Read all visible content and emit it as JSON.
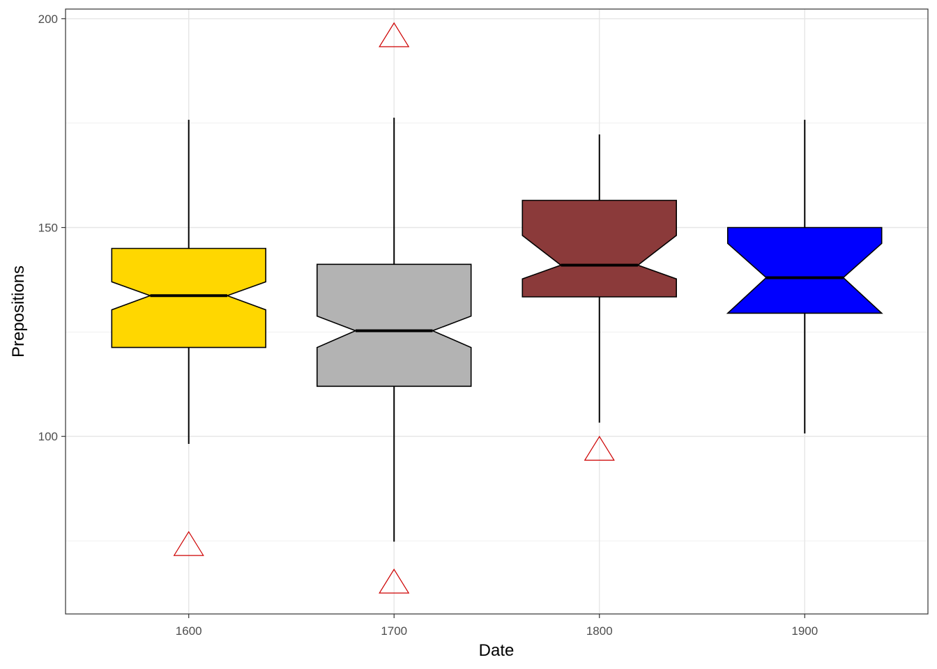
{
  "chart_data": {
    "type": "boxplot",
    "notched": true,
    "xlabel": "Date",
    "ylabel": "Prepositions",
    "categories": [
      "1600",
      "1700",
      "1800",
      "1900"
    ],
    "x_ticks": [
      "1600",
      "1700",
      "1800",
      "1900"
    ],
    "y_ticks": [
      100,
      150,
      200
    ],
    "ylim": [
      57.5,
      202.3
    ],
    "grid": true,
    "legend": "none",
    "boxes": [
      {
        "category": "1600",
        "fill": "#FFD700",
        "whisker_low": 98.2,
        "q1": 121.3,
        "notch_low": 130.3,
        "median": 133.7,
        "notch_high": 137.0,
        "q3": 145.0,
        "whisker_high": 175.8,
        "outliers": [
          74.0
        ]
      },
      {
        "category": "1700",
        "fill": "#B3B3B3",
        "whisker_low": 74.8,
        "q1": 112.0,
        "notch_low": 121.3,
        "median": 125.3,
        "notch_high": 128.8,
        "q3": 141.2,
        "whisker_high": 176.3,
        "outliers": [
          195.8,
          65.0
        ]
      },
      {
        "category": "1800",
        "fill": "#8B3A3A",
        "whisker_low": 103.3,
        "q1": 133.4,
        "notch_low": 137.7,
        "median": 141.0,
        "notch_high": 148.1,
        "q3": 156.5,
        "whisker_high": 172.3,
        "outliers": [
          96.8
        ]
      },
      {
        "category": "1900",
        "fill": "#0000FF",
        "whisker_low": 100.7,
        "q1": 129.5,
        "notch_low": 129.5,
        "median": 138.0,
        "notch_high": 146.2,
        "q3": 150.0,
        "whisker_high": 175.8,
        "outliers": []
      }
    ],
    "outlier_style": {
      "shape": "triangle-open",
      "color": "#CD0000"
    }
  }
}
